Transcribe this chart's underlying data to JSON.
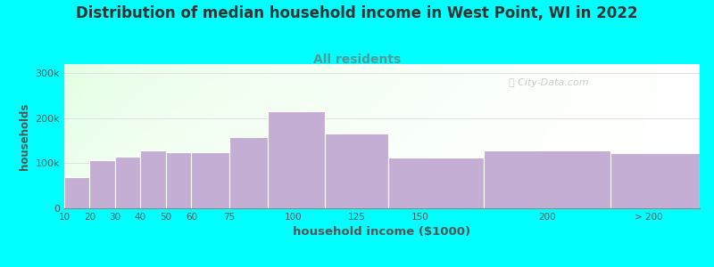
{
  "title": "Distribution of median household income in West Point, WI in 2022",
  "subtitle": "All residents",
  "xlabel": "household income ($1000)",
  "ylabel": "households",
  "background_color": "#00FFFF",
  "bar_color": "#C4AED4",
  "bar_edge_color": "#FFFFFF",
  "values": [
    70000,
    107000,
    115000,
    128000,
    125000,
    125000,
    158000,
    215000,
    165000,
    113000,
    128000,
    122000
  ],
  "bar_lefts": [
    10,
    20,
    30,
    40,
    50,
    60,
    75,
    90,
    112.5,
    137.5,
    175,
    225
  ],
  "bar_rights": [
    20,
    30,
    40,
    50,
    60,
    75,
    90,
    112.5,
    137.5,
    175,
    225,
    260
  ],
  "ylim": [
    0,
    320000
  ],
  "yticks": [
    0,
    100000,
    200000,
    300000
  ],
  "ytick_labels": [
    "0",
    "100k",
    "200k",
    "300k"
  ],
  "xlim": [
    10,
    260
  ],
  "xtick_positions": [
    10,
    20,
    30,
    40,
    50,
    60,
    75,
    100,
    125,
    150,
    200,
    240
  ],
  "xtick_labels": [
    "10",
    "20",
    "30",
    "40",
    "50",
    "60",
    "75",
    "100",
    "125",
    "150",
    "200",
    "> 200"
  ],
  "title_fontsize": 12,
  "subtitle_fontsize": 10,
  "watermark_text": "Ⓢ City-Data.com",
  "title_color": "#333333",
  "subtitle_color": "#559999",
  "axis_color": "#555555",
  "grid_color": "#DDDDDD"
}
